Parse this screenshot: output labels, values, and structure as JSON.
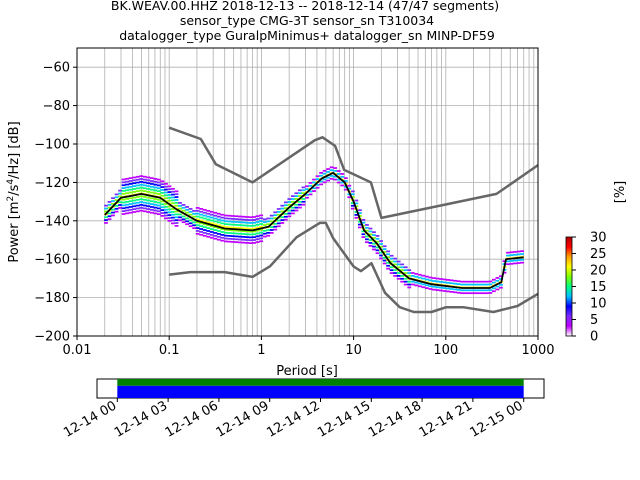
{
  "title": {
    "line1": "BK.WEAV.00.HHZ   2018-12-13 -- 2018-12-14  (47/47 segments)",
    "line2": "sensor_type CMG-3T sensor_sn T310034",
    "line3": "datalogger_type GuralpMinimus+ datalogger_sn MINP-DF59"
  },
  "chart_data": [
    {
      "type": "heatmap",
      "title": "BK.WEAV.00.HHZ   2018-12-13 -- 2018-12-14  (47/47 segments)",
      "xlabel": "Period [s]",
      "ylabel_parts": {
        "a": "Power [m",
        "b": "2",
        "c": "/s",
        "d": "4",
        "e": "/Hz] [dB]"
      },
      "x_scale": "log",
      "xlim": [
        0.01,
        1000
      ],
      "ylim": [
        -200,
        -50
      ],
      "x_tick_labels": [
        {
          "v": 0.01,
          "label": "0.01"
        },
        {
          "v": 0.1,
          "label": "0.1"
        },
        {
          "v": 1,
          "label": "1"
        },
        {
          "v": 10,
          "label": "10"
        },
        {
          "v": 100,
          "label": "100"
        },
        {
          "v": 1000,
          "label": "1000"
        }
      ],
      "y_ticks": [
        -200,
        -180,
        -160,
        -140,
        -120,
        -100,
        -80,
        -60
      ],
      "y_tick_labels": [
        "−200",
        "−180",
        "−160",
        "−140",
        "−120",
        "−100",
        "−80",
        "−60"
      ],
      "grid": true,
      "series": [
        {
          "name": "NHNM",
          "color": "#666666",
          "points": [
            [
              0.1,
              -91.5
            ],
            [
              0.22,
              -97.4
            ],
            [
              0.32,
              -110.5
            ],
            [
              0.8,
              -120
            ],
            [
              3.8,
              -98
            ],
            [
              4.6,
              -96.5
            ],
            [
              6.3,
              -101
            ],
            [
              7.9,
              -113.5
            ],
            [
              15.4,
              -120
            ],
            [
              20,
              -138.5
            ],
            [
              354.8,
              -126
            ],
            [
              1000,
              -111
            ]
          ]
        },
        {
          "name": "NLNM",
          "color": "#666666",
          "points": [
            [
              0.1,
              -168
            ],
            [
              0.17,
              -166.7
            ],
            [
              0.4,
              -166.7
            ],
            [
              0.8,
              -169.2
            ],
            [
              1.24,
              -163.7
            ],
            [
              2.4,
              -148.6
            ],
            [
              4.3,
              -141.1
            ],
            [
              5,
              -141.1
            ],
            [
              6,
              -149
            ],
            [
              10,
              -163.8
            ],
            [
              12,
              -166.2
            ],
            [
              15.6,
              -162.1
            ],
            [
              21.9,
              -177.5
            ],
            [
              31.6,
              -185
            ],
            [
              45,
              -187.5
            ],
            [
              70,
              -187.5
            ],
            [
              101,
              -185
            ],
            [
              154,
              -185
            ],
            [
              328,
              -187.5
            ],
            [
              600,
              -184.4
            ],
            [
              1000,
              -178
            ]
          ]
        },
        {
          "name": "mode",
          "color": "#000000",
          "points": [
            [
              0.02,
              -137
            ],
            [
              0.03,
              -128
            ],
            [
              0.05,
              -126
            ],
            [
              0.08,
              -128
            ],
            [
              0.12,
              -134
            ],
            [
              0.2,
              -140
            ],
            [
              0.4,
              -144
            ],
            [
              0.8,
              -145
            ],
            [
              1.2,
              -143
            ],
            [
              2,
              -133
            ],
            [
              3,
              -126
            ],
            [
              4.5,
              -118
            ],
            [
              6,
              -115
            ],
            [
              8,
              -120
            ],
            [
              10,
              -130
            ],
            [
              13,
              -145
            ],
            [
              18,
              -152
            ],
            [
              25,
              -162
            ],
            [
              40,
              -170
            ],
            [
              70,
              -173
            ],
            [
              150,
              -175
            ],
            [
              300,
              -175
            ],
            [
              400,
              -172
            ],
            [
              450,
              -160
            ],
            [
              700,
              -159
            ]
          ]
        }
      ],
      "colorbar": {
        "label": "[%]",
        "range": [
          0,
          30
        ],
        "ticks": [
          0,
          5,
          10,
          15,
          20,
          25,
          30
        ],
        "colors": [
          "#ffffff",
          "#c000ff",
          "#7a2bff",
          "#0000ff",
          "#00c0ff",
          "#00ff80",
          "#80ff00",
          "#ffff00",
          "#ffa000",
          "#ff0000",
          "#b00000"
        ]
      }
    },
    {
      "type": "timeline",
      "tick_labels": [
        "12-14 00",
        "12-14 03",
        "12-14 06",
        "12-14 09",
        "12-14 12",
        "12-14 15",
        "12-14 18",
        "12-14 21",
        "12-15 00"
      ],
      "tick_hours": [
        0,
        3,
        6,
        9,
        12,
        15,
        18,
        21,
        24
      ],
      "xlim_hours": [
        -1.2,
        25.2
      ],
      "coverage_hours": [
        0,
        24
      ],
      "bars": [
        {
          "color": "#008000",
          "share": 0.36
        },
        {
          "color": "#0000ff",
          "share": 0.64
        }
      ]
    }
  ]
}
